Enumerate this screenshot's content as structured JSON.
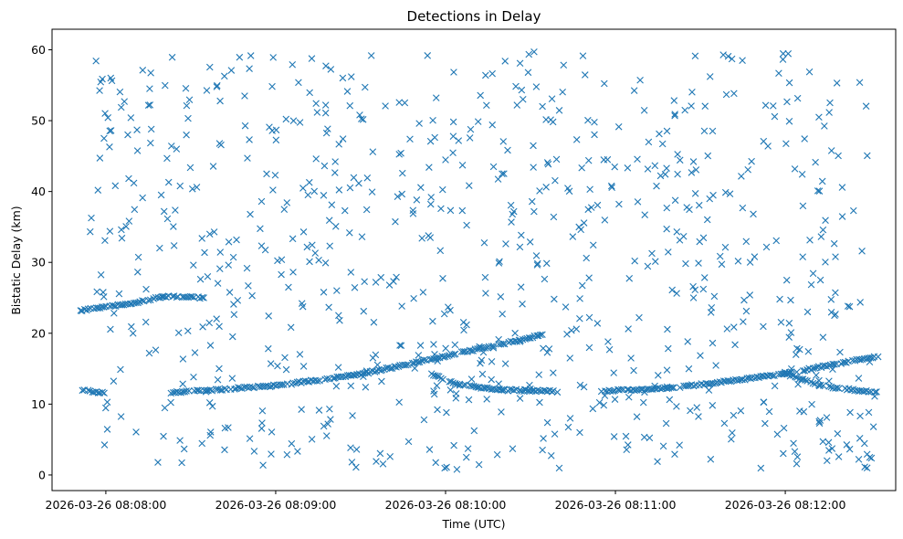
{
  "chart_data": {
    "type": "scatter",
    "title": "Detections in Delay",
    "xlabel": "Time (UTC)",
    "ylabel": "Bistatic Delay (km)",
    "x_unit": "time",
    "xlim": [
      "2026-03-26 08:07:41",
      "2026-03-26 08:12:39"
    ],
    "ylim": [
      -2.2,
      62.9
    ],
    "x_ticks": [
      "2026-03-26 08:08:00",
      "2026-03-26 08:09:00",
      "2026-03-26 08:10:00",
      "2026-03-26 08:11:00",
      "2026-03-26 08:12:00"
    ],
    "y_ticks": [
      0,
      10,
      20,
      30,
      40,
      50,
      60
    ],
    "grid": false,
    "marker": "x",
    "color": "#1f77b4",
    "time_range": [
      "2026-03-26 08:07:51",
      "2026-03-26 08:12:33"
    ],
    "tracks": [
      {
        "points": [
          [
            "08:07:51",
            12.0
          ],
          [
            "08:08:00",
            11.5
          ]
        ]
      },
      {
        "points": [
          [
            "08:07:51",
            23.2
          ],
          [
            "08:08:10",
            24.3
          ],
          [
            "08:08:20",
            25.2
          ],
          [
            "08:08:35",
            25.0
          ]
        ]
      },
      {
        "points": [
          [
            "08:08:23",
            11.6
          ],
          [
            "08:09:00",
            12.6
          ],
          [
            "08:09:30",
            14.2
          ],
          [
            "08:10:00",
            16.8
          ],
          [
            "08:10:35",
            19.8
          ]
        ]
      },
      {
        "points": [
          [
            "08:09:55",
            14.2
          ],
          [
            "08:10:05",
            12.7
          ],
          [
            "08:10:20",
            12.0
          ],
          [
            "08:10:40",
            11.8
          ]
        ]
      },
      {
        "points": [
          [
            "08:10:55",
            11.8
          ],
          [
            "08:11:20",
            12.3
          ],
          [
            "08:11:45",
            13.5
          ],
          [
            "08:12:00",
            14.3
          ],
          [
            "08:12:33",
            16.8
          ]
        ]
      },
      {
        "points": [
          [
            "08:12:00",
            14.4
          ],
          [
            "08:12:12",
            12.6
          ],
          [
            "08:12:33",
            11.6
          ]
        ]
      }
    ],
    "clutter_count": 800,
    "clutter_y_range": [
      0.6,
      59.8
    ]
  }
}
